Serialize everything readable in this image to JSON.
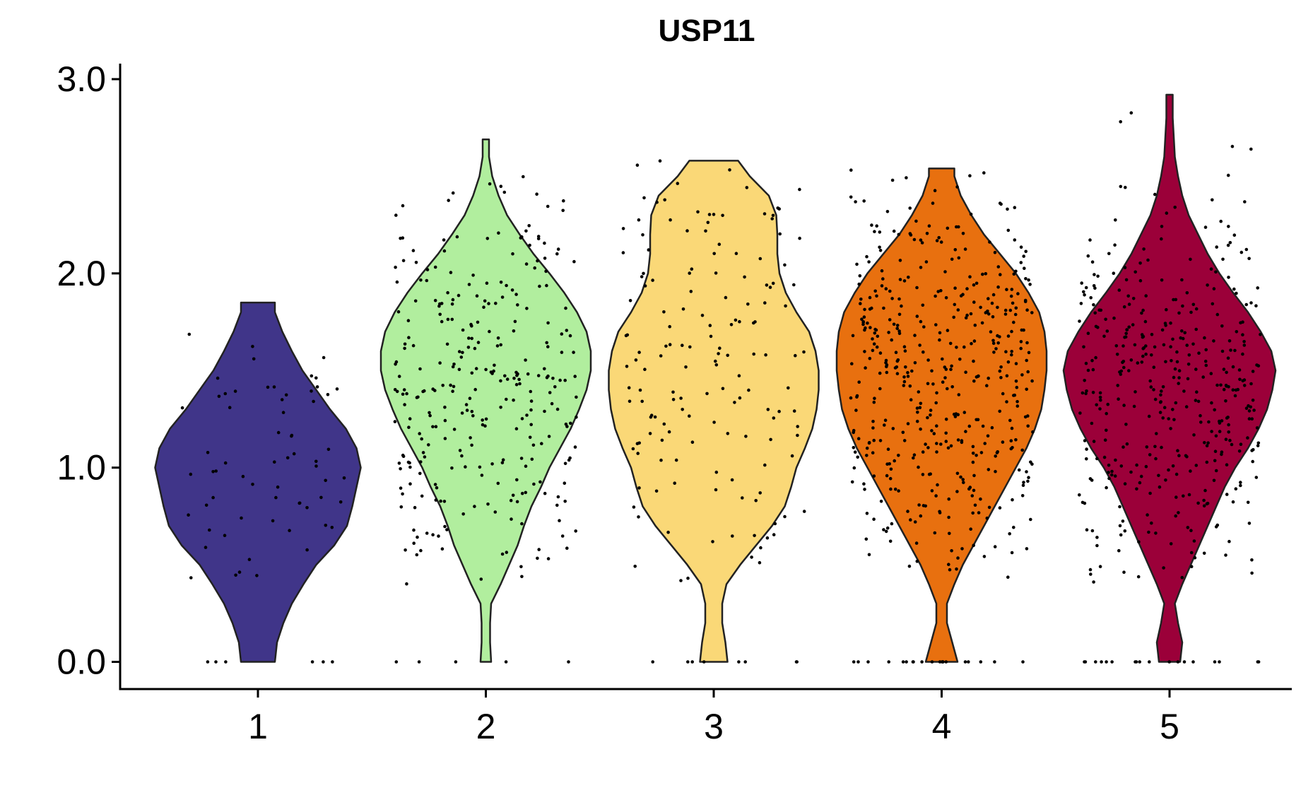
{
  "chart_data": {
    "type": "violin",
    "title": "USP11",
    "xlabel": "",
    "ylabel": "",
    "categories": [
      "1",
      "2",
      "3",
      "4",
      "5"
    ],
    "ylim": [
      -0.14,
      3.08
    ],
    "yticks": [
      0.0,
      1.0,
      2.0,
      3.0
    ],
    "ytick_labels": [
      "0.0",
      "1.0",
      "2.0",
      "3.0"
    ],
    "grid": false,
    "legend": "none",
    "jitter_width": 0.4,
    "series": [
      {
        "category": "1",
        "color": "#403589",
        "max": 1.85,
        "n_points": 70,
        "n_zero": 6,
        "density": [
          [
            0.0,
            0.16
          ],
          [
            0.1,
            0.18
          ],
          [
            0.2,
            0.24
          ],
          [
            0.3,
            0.32
          ],
          [
            0.4,
            0.43
          ],
          [
            0.5,
            0.55
          ],
          [
            0.6,
            0.72
          ],
          [
            0.7,
            0.84
          ],
          [
            0.8,
            0.89
          ],
          [
            0.9,
            0.93
          ],
          [
            1.0,
            0.97
          ],
          [
            1.1,
            0.93
          ],
          [
            1.2,
            0.83
          ],
          [
            1.3,
            0.68
          ],
          [
            1.4,
            0.55
          ],
          [
            1.5,
            0.42
          ],
          [
            1.6,
            0.32
          ],
          [
            1.7,
            0.23
          ],
          [
            1.8,
            0.16
          ],
          [
            1.85,
            0.16
          ]
        ]
      },
      {
        "category": "2",
        "color": "#B1EE9E",
        "max": 2.69,
        "n_points": 300,
        "n_zero": 5,
        "density": [
          [
            0.0,
            0.05
          ],
          [
            0.1,
            0.04
          ],
          [
            0.2,
            0.04
          ],
          [
            0.3,
            0.05
          ],
          [
            0.4,
            0.14
          ],
          [
            0.5,
            0.22
          ],
          [
            0.6,
            0.3
          ],
          [
            0.7,
            0.36
          ],
          [
            0.8,
            0.43
          ],
          [
            0.9,
            0.52
          ],
          [
            1.0,
            0.6
          ],
          [
            1.1,
            0.7
          ],
          [
            1.2,
            0.8
          ],
          [
            1.3,
            0.88
          ],
          [
            1.4,
            0.95
          ],
          [
            1.5,
            0.99
          ],
          [
            1.6,
            0.99
          ],
          [
            1.7,
            0.95
          ],
          [
            1.8,
            0.86
          ],
          [
            1.9,
            0.74
          ],
          [
            2.0,
            0.6
          ],
          [
            2.1,
            0.45
          ],
          [
            2.2,
            0.32
          ],
          [
            2.3,
            0.2
          ],
          [
            2.4,
            0.12
          ],
          [
            2.5,
            0.06
          ],
          [
            2.6,
            0.03
          ],
          [
            2.69,
            0.03
          ]
        ]
      },
      {
        "category": "3",
        "color": "#FAD877",
        "max": 2.58,
        "n_points": 160,
        "n_zero": 8,
        "density": [
          [
            0.0,
            0.13
          ],
          [
            0.1,
            0.11
          ],
          [
            0.2,
            0.08
          ],
          [
            0.3,
            0.08
          ],
          [
            0.4,
            0.12
          ],
          [
            0.5,
            0.25
          ],
          [
            0.6,
            0.4
          ],
          [
            0.7,
            0.55
          ],
          [
            0.8,
            0.67
          ],
          [
            0.9,
            0.73
          ],
          [
            1.0,
            0.78
          ],
          [
            1.1,
            0.86
          ],
          [
            1.2,
            0.93
          ],
          [
            1.3,
            0.97
          ],
          [
            1.4,
            0.99
          ],
          [
            1.5,
            0.99
          ],
          [
            1.6,
            0.96
          ],
          [
            1.7,
            0.9
          ],
          [
            1.8,
            0.78
          ],
          [
            1.9,
            0.68
          ],
          [
            2.0,
            0.62
          ],
          [
            2.1,
            0.6
          ],
          [
            2.2,
            0.6
          ],
          [
            2.3,
            0.59
          ],
          [
            2.4,
            0.52
          ],
          [
            2.5,
            0.34
          ],
          [
            2.58,
            0.23
          ]
        ]
      },
      {
        "category": "4",
        "color": "#E8700F",
        "max": 2.54,
        "n_points": 480,
        "n_zero": 20,
        "density": [
          [
            0.0,
            0.15
          ],
          [
            0.1,
            0.1
          ],
          [
            0.2,
            0.05
          ],
          [
            0.3,
            0.05
          ],
          [
            0.4,
            0.12
          ],
          [
            0.5,
            0.2
          ],
          [
            0.6,
            0.3
          ],
          [
            0.7,
            0.4
          ],
          [
            0.8,
            0.5
          ],
          [
            0.9,
            0.6
          ],
          [
            1.0,
            0.7
          ],
          [
            1.1,
            0.8
          ],
          [
            1.2,
            0.88
          ],
          [
            1.3,
            0.94
          ],
          [
            1.4,
            0.97
          ],
          [
            1.5,
            0.99
          ],
          [
            1.6,
            0.99
          ],
          [
            1.7,
            0.97
          ],
          [
            1.8,
            0.92
          ],
          [
            1.9,
            0.82
          ],
          [
            2.0,
            0.7
          ],
          [
            2.1,
            0.55
          ],
          [
            2.2,
            0.4
          ],
          [
            2.3,
            0.28
          ],
          [
            2.4,
            0.18
          ],
          [
            2.5,
            0.12
          ],
          [
            2.54,
            0.12
          ]
        ]
      },
      {
        "category": "5",
        "color": "#9B0039",
        "max": 2.92,
        "n_points": 420,
        "n_zero": 18,
        "density": [
          [
            0.0,
            0.1
          ],
          [
            0.1,
            0.12
          ],
          [
            0.2,
            0.08
          ],
          [
            0.3,
            0.05
          ],
          [
            0.4,
            0.12
          ],
          [
            0.5,
            0.2
          ],
          [
            0.6,
            0.28
          ],
          [
            0.7,
            0.36
          ],
          [
            0.8,
            0.44
          ],
          [
            0.9,
            0.52
          ],
          [
            1.0,
            0.62
          ],
          [
            1.1,
            0.74
          ],
          [
            1.2,
            0.84
          ],
          [
            1.3,
            0.92
          ],
          [
            1.4,
            0.97
          ],
          [
            1.5,
            1.0
          ],
          [
            1.6,
            0.96
          ],
          [
            1.7,
            0.86
          ],
          [
            1.8,
            0.74
          ],
          [
            1.9,
            0.6
          ],
          [
            2.0,
            0.47
          ],
          [
            2.1,
            0.36
          ],
          [
            2.2,
            0.27
          ],
          [
            2.3,
            0.18
          ],
          [
            2.4,
            0.12
          ],
          [
            2.5,
            0.08
          ],
          [
            2.6,
            0.05
          ],
          [
            2.7,
            0.04
          ],
          [
            2.8,
            0.03
          ],
          [
            2.92,
            0.03
          ]
        ]
      }
    ]
  }
}
